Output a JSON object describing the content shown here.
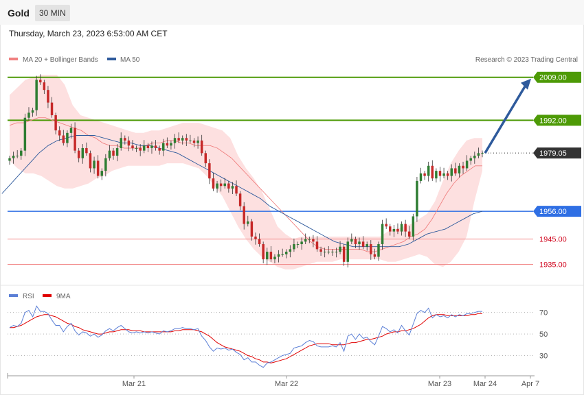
{
  "header": {
    "asset": "Gold",
    "timeframe": "30 MIN",
    "datetime": "Thursday, March 23, 2023 6:53:00 AM CET"
  },
  "legend": {
    "ma20_label": "MA 20 + Bollinger Bands",
    "ma50_label": "MA 50",
    "ma20_color": "#f08080",
    "ma50_color": "#2e5a9c",
    "credit": "Research © 2023 Trading Central"
  },
  "rsi_legend": {
    "rsi_label": "RSI",
    "ma_label": "9MA",
    "rsi_color": "#5b7fd6",
    "ma_color": "#e00000"
  },
  "colors": {
    "up": "#2e7d32",
    "down": "#c62828",
    "band_fill": "#fde0e0",
    "resistance": "#4d9a06",
    "pivot": "#2f6fe4",
    "support": "#f28a8a",
    "last": "#333333",
    "arrow": "#2e5a9c"
  },
  "chart_data": [
    {
      "type": "candlestick",
      "y_range": [
        1927,
        2013
      ],
      "x_ticks": [
        "Mar 21",
        "Mar 22",
        "Mar 23",
        "Mar 24",
        "Apr 7"
      ],
      "levels": [
        {
          "value": 2009.0,
          "label": "2009.00",
          "kind": "resistance"
        },
        {
          "value": 1992.0,
          "label": "1992.00",
          "kind": "resistance"
        },
        {
          "value": 1979.05,
          "label": "1979.05",
          "kind": "last"
        },
        {
          "value": 1956.0,
          "label": "1956.00",
          "kind": "pivot"
        },
        {
          "value": 1945.0,
          "label": "1945.00",
          "kind": "support"
        },
        {
          "value": 1935.0,
          "label": "1935.00",
          "kind": "support"
        }
      ],
      "closes": [
        1977,
        1978,
        1978,
        1980,
        1993,
        1995,
        1996,
        2008,
        2007,
        2004,
        1999,
        1994,
        1988,
        1986,
        1983,
        1987,
        1989,
        1980,
        1977,
        1981,
        1979,
        1973,
        1976,
        1970,
        1972,
        1977,
        1980,
        1978,
        1981,
        1985,
        1984,
        1982,
        1981,
        1981,
        1980,
        1982,
        1981,
        1982,
        1981,
        1980,
        1983,
        1982,
        1983,
        1985,
        1984,
        1985,
        1984,
        1984,
        1983,
        1984,
        1979,
        1975,
        1969,
        1965,
        1967,
        1966,
        1967,
        1965,
        1966,
        1963,
        1958,
        1951,
        1952,
        1946,
        1945,
        1943,
        1937,
        1940,
        1937,
        1938,
        1939,
        1939,
        1940,
        1941,
        1943,
        1943,
        1944,
        1945,
        1945,
        1944,
        1941,
        1940,
        1940,
        1940,
        1940,
        1940,
        1942,
        1936,
        1944,
        1945,
        1943,
        1944,
        1942,
        1943,
        1939,
        1938,
        1943,
        1951,
        1950,
        1948,
        1949,
        1948,
        1951,
        1948,
        1946,
        1954,
        1968,
        1971,
        1970,
        1974,
        1969,
        1972,
        1970,
        1971,
        1970,
        1973,
        1971,
        1974,
        1973,
        1976,
        1977,
        1978,
        1979,
        1979.05
      ],
      "ma20": [
        1990,
        1991,
        1991,
        1992,
        1993,
        1993,
        1992,
        1991,
        1990,
        1989,
        1988,
        1986,
        1985,
        1983,
        1982,
        1982,
        1981,
        1981,
        1981,
        1982,
        1983,
        1983,
        1984,
        1984,
        1983,
        1983,
        1982,
        1982,
        1982,
        1981,
        1979,
        1977,
        1974,
        1971,
        1968,
        1965,
        1962,
        1959,
        1956,
        1953,
        1950,
        1947,
        1944,
        1942,
        1941,
        1941,
        1941,
        1941,
        1941,
        1941,
        1940,
        1940,
        1941,
        1942,
        1943,
        1944,
        1946,
        1947,
        1949,
        1953,
        1958,
        1963,
        1967,
        1970,
        1972,
        1974,
        1974
      ],
      "ma50": [
        1963,
        1967,
        1971,
        1975,
        1979,
        1982,
        1984,
        1985,
        1986,
        1986,
        1986,
        1985,
        1984,
        1983,
        1983,
        1982,
        1982,
        1981,
        1980,
        1979,
        1977,
        1975,
        1973,
        1971,
        1969,
        1967,
        1965,
        1963,
        1961,
        1958,
        1956,
        1954,
        1952,
        1950,
        1948,
        1946,
        1944,
        1943,
        1942,
        1942,
        1942,
        1942,
        1942,
        1942,
        1943,
        1945,
        1947,
        1948,
        1949,
        1951,
        1953,
        1955,
        1956
      ],
      "bb_upper": [
        2002,
        2005,
        2008,
        2009,
        2010,
        2010,
        2010,
        2006,
        1998,
        1994,
        1993,
        1992,
        1991,
        1990,
        1989,
        1988,
        1987,
        1987,
        1988,
        1988,
        1989,
        1990,
        1991,
        1991,
        1991,
        1990,
        1989,
        1988,
        1985,
        1978,
        1973,
        1969,
        1964,
        1957,
        1950,
        1947,
        1945,
        1946,
        1946,
        1946,
        1946,
        1946,
        1946,
        1946,
        1946,
        1946,
        1946,
        1946,
        1948,
        1949,
        1950,
        1951,
        1953,
        1955,
        1960,
        1968,
        1975,
        1980,
        1984,
        1985,
        1985
      ],
      "bb_lower": [
        1976,
        1973,
        1971,
        1971,
        1970,
        1968,
        1966,
        1965,
        1965,
        1966,
        1967,
        1969,
        1970,
        1972,
        1973,
        1974,
        1974,
        1974,
        1974,
        1974,
        1975,
        1975,
        1975,
        1974,
        1973,
        1970,
        1966,
        1962,
        1956,
        1950,
        1945,
        1941,
        1938,
        1936,
        1934,
        1933,
        1933,
        1934,
        1935,
        1936,
        1936,
        1936,
        1937,
        1937,
        1937,
        1937,
        1937,
        1937,
        1936,
        1936,
        1937,
        1938,
        1939,
        1938,
        1935,
        1934,
        1936,
        1940,
        1946,
        1960,
        1972
      ],
      "forecast_target": 2009.0
    },
    {
      "type": "line",
      "name": "RSI",
      "y_ticks": [
        70,
        50,
        30
      ],
      "rsi": [
        56,
        58,
        57,
        60,
        70,
        72,
        66,
        76,
        71,
        71,
        69,
        63,
        58,
        58,
        52,
        57,
        60,
        53,
        49,
        52,
        51,
        48,
        50,
        47,
        49,
        53,
        55,
        53,
        56,
        58,
        55,
        52,
        51,
        52,
        51,
        52,
        51,
        52,
        51,
        50,
        53,
        52,
        53,
        55,
        55,
        56,
        55,
        55,
        54,
        55,
        48,
        44,
        38,
        34,
        37,
        36,
        37,
        35,
        36,
        33,
        31,
        26,
        28,
        24,
        24,
        21,
        19,
        23,
        24,
        26,
        28,
        30,
        31,
        32,
        37,
        38,
        39,
        42,
        44,
        43,
        39,
        38,
        38,
        38,
        39,
        38,
        42,
        34,
        48,
        50,
        45,
        50,
        46,
        47,
        43,
        40,
        48,
        57,
        55,
        52,
        54,
        51,
        58,
        53,
        49,
        59,
        69,
        72,
        70,
        74,
        65,
        68,
        66,
        67,
        65,
        68,
        66,
        68,
        67,
        69,
        69,
        70,
        71,
        71
      ],
      "ma9": [
        56,
        56,
        57,
        58,
        60,
        62,
        64,
        66,
        67,
        68,
        68,
        67,
        66,
        64,
        62,
        60,
        59,
        57,
        56,
        54,
        53,
        52,
        51,
        50,
        50,
        51,
        52,
        52,
        53,
        54,
        54,
        54,
        53,
        53,
        53,
        52,
        52,
        52,
        52,
        52,
        52,
        52,
        52,
        53,
        53,
        54,
        54,
        54,
        54,
        53,
        52,
        50,
        48,
        45,
        42,
        40,
        38,
        37,
        36,
        35,
        34,
        32,
        30,
        29,
        27,
        26,
        24,
        24,
        23,
        24,
        25,
        26,
        27,
        29,
        31,
        33,
        35,
        37,
        39,
        40,
        41,
        41,
        41,
        41,
        40,
        40,
        40,
        40,
        41,
        42,
        42,
        43,
        44,
        45,
        45,
        46,
        47,
        48,
        50,
        51,
        52,
        52,
        53,
        53,
        54,
        55,
        57,
        59,
        62,
        65,
        67,
        68,
        68,
        68,
        67,
        67,
        67,
        67,
        67,
        67,
        68,
        68,
        69,
        69
      ]
    }
  ]
}
